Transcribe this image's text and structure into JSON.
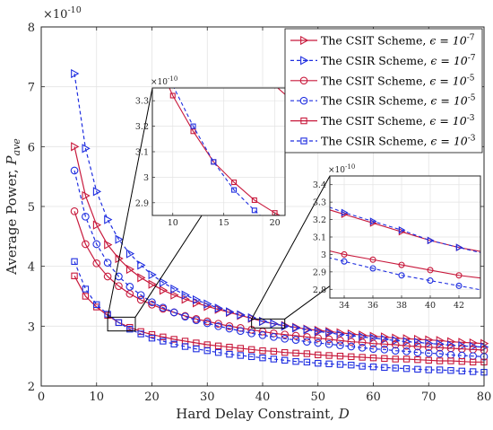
{
  "chart_data": {
    "type": "line",
    "xlabel": "Hard Delay Constraint, ",
    "xlabel_var": "D",
    "ylabel": "Average Power, ",
    "ylabel_var": "P",
    "ylabel_sub": "ave",
    "xlim": [
      0,
      80
    ],
    "ylim": [
      2e-10,
      8e-10
    ],
    "y_exponent": "×10",
    "y_exponent_power": "-10",
    "xticks": [
      "0",
      "10",
      "20",
      "30",
      "40",
      "50",
      "60",
      "70",
      "80"
    ],
    "yticks": [
      "2",
      "3",
      "4",
      "5",
      "6",
      "7",
      "8"
    ],
    "grid": true,
    "legend_position": "top-right",
    "colors": {
      "csit": "#c8193c",
      "csir": "#1f2ee0"
    },
    "series": [
      {
        "name": "The CSIT Scheme, ",
        "eps": "ϵ = 10",
        "eps_power": "-7",
        "style": "solid",
        "color": "#c8193c",
        "marker": "triangle-right",
        "x": [
          6,
          8,
          10,
          12,
          14,
          16,
          18,
          20,
          22,
          24,
          26,
          28,
          30,
          32,
          34,
          36,
          38,
          40,
          42,
          44,
          46,
          48,
          50,
          52,
          54,
          56,
          58,
          60,
          62,
          64,
          66,
          68,
          70,
          72,
          74,
          76,
          78,
          80
        ],
        "y": [
          6e-10,
          5.18e-10,
          4.69e-10,
          4.36e-10,
          4.13e-10,
          3.95e-10,
          3.81e-10,
          3.7e-10,
          3.6e-10,
          3.52e-10,
          3.45e-10,
          3.39e-10,
          3.33e-10,
          3.28e-10,
          3.23e-10,
          3.18e-10,
          3.13e-10,
          3.08e-10,
          3.04e-10,
          3.01e-10,
          2.98e-10,
          2.95e-10,
          2.93e-10,
          2.91e-10,
          2.89e-10,
          2.87e-10,
          2.85e-10,
          2.83e-10,
          2.82e-10,
          2.8e-10,
          2.79e-10,
          2.78e-10,
          2.77e-10,
          2.76e-10,
          2.74e-10,
          2.73e-10,
          2.72e-10,
          2.71e-10
        ]
      },
      {
        "name": "The CSIR Scheme, ",
        "eps": "ϵ = 10",
        "eps_power": "-7",
        "style": "dashed",
        "color": "#1f2ee0",
        "marker": "triangle-right-open",
        "x": [
          6,
          8,
          10,
          12,
          14,
          16,
          18,
          20,
          22,
          24,
          26,
          28,
          30,
          32,
          34,
          36,
          38,
          40,
          42,
          44,
          46,
          48,
          50,
          52,
          54,
          56,
          58,
          60,
          62,
          64,
          66,
          68,
          70,
          72,
          74,
          76,
          78,
          80
        ],
        "y": [
          7.22e-10,
          5.97e-10,
          5.25e-10,
          4.78e-10,
          4.45e-10,
          4.21e-10,
          4.02e-10,
          3.86e-10,
          3.73e-10,
          3.62e-10,
          3.52e-10,
          3.44e-10,
          3.37e-10,
          3.3e-10,
          3.24e-10,
          3.19e-10,
          3.14e-10,
          3.08e-10,
          3.04e-10,
          3e-10,
          2.97e-10,
          2.94e-10,
          2.91e-10,
          2.89e-10,
          2.86e-10,
          2.84e-10,
          2.82e-10,
          2.8e-10,
          2.78e-10,
          2.76e-10,
          2.74e-10,
          2.73e-10,
          2.71e-10,
          2.7e-10,
          2.68e-10,
          2.67e-10,
          2.66e-10,
          2.65e-10
        ]
      },
      {
        "name": "The CSIT Scheme, ",
        "eps": "ϵ = 10",
        "eps_power": "-5",
        "style": "solid",
        "color": "#c8193c",
        "marker": "circle-open",
        "x": [
          6,
          8,
          10,
          12,
          14,
          16,
          18,
          20,
          22,
          24,
          26,
          28,
          30,
          32,
          34,
          36,
          38,
          40,
          42,
          44,
          46,
          48,
          50,
          52,
          54,
          56,
          58,
          60,
          62,
          64,
          66,
          68,
          70,
          72,
          74,
          76,
          78,
          80
        ],
        "y": [
          4.92e-10,
          4.37e-10,
          4.05e-10,
          3.83e-10,
          3.67e-10,
          3.54e-10,
          3.44e-10,
          3.36e-10,
          3.29e-10,
          3.23e-10,
          3.17e-10,
          3.12e-10,
          3.08e-10,
          3.04e-10,
          3e-10,
          2.97e-10,
          2.94e-10,
          2.91e-10,
          2.88e-10,
          2.86e-10,
          2.84e-10,
          2.82e-10,
          2.8e-10,
          2.78e-10,
          2.76e-10,
          2.74e-10,
          2.73e-10,
          2.71e-10,
          2.7e-10,
          2.69e-10,
          2.67e-10,
          2.66e-10,
          2.65e-10,
          2.64e-10,
          2.63e-10,
          2.62e-10,
          2.61e-10,
          2.6e-10
        ]
      },
      {
        "name": "The CSIR Scheme, ",
        "eps": "ϵ = 10",
        "eps_power": "-5",
        "style": "dashed",
        "color": "#1f2ee0",
        "marker": "circle-open",
        "x": [
          6,
          8,
          10,
          12,
          14,
          16,
          18,
          20,
          22,
          24,
          26,
          28,
          30,
          32,
          34,
          36,
          38,
          40,
          42,
          44,
          46,
          48,
          50,
          52,
          54,
          56,
          58,
          60,
          62,
          64,
          66,
          68,
          70,
          72,
          74,
          76,
          78,
          80
        ],
        "y": [
          5.6e-10,
          4.83e-10,
          4.37e-10,
          4.06e-10,
          3.83e-10,
          3.66e-10,
          3.52e-10,
          3.4e-10,
          3.31e-10,
          3.23e-10,
          3.16e-10,
          3.1e-10,
          3.05e-10,
          3e-10,
          2.96e-10,
          2.92e-10,
          2.88e-10,
          2.85e-10,
          2.82e-10,
          2.79e-10,
          2.77e-10,
          2.74e-10,
          2.72e-10,
          2.7e-10,
          2.68e-10,
          2.66e-10,
          2.64e-10,
          2.62e-10,
          2.61e-10,
          2.59e-10,
          2.58e-10,
          2.56e-10,
          2.55e-10,
          2.54e-10,
          2.52e-10,
          2.51e-10,
          2.5e-10,
          2.49e-10
        ]
      },
      {
        "name": "The CSIT Scheme, ",
        "eps": "ϵ = 10",
        "eps_power": "-3",
        "style": "solid",
        "color": "#c8193c",
        "marker": "square-open",
        "x": [
          6,
          8,
          10,
          12,
          14,
          16,
          18,
          20,
          22,
          24,
          26,
          28,
          30,
          32,
          34,
          36,
          38,
          40,
          42,
          44,
          46,
          48,
          50,
          52,
          54,
          56,
          58,
          60,
          62,
          64,
          66,
          68,
          70,
          72,
          74,
          76,
          78,
          80
        ],
        "y": [
          3.84e-10,
          3.5e-10,
          3.32e-10,
          3.18e-10,
          3.06e-10,
          2.98e-10,
          2.91e-10,
          2.86e-10,
          2.82e-10,
          2.78e-10,
          2.75e-10,
          2.72e-10,
          2.69e-10,
          2.67e-10,
          2.65e-10,
          2.63e-10,
          2.61e-10,
          2.59e-10,
          2.58e-10,
          2.56e-10,
          2.55e-10,
          2.54e-10,
          2.52e-10,
          2.51e-10,
          2.5e-10,
          2.49e-10,
          2.48e-10,
          2.47e-10,
          2.46e-10,
          2.45e-10,
          2.45e-10,
          2.44e-10,
          2.43e-10,
          2.42e-10,
          2.42e-10,
          2.41e-10,
          2.4e-10,
          2.4e-10
        ]
      },
      {
        "name": "The CSIR Scheme, ",
        "eps": "ϵ = 10",
        "eps_power": "-3",
        "style": "dashed",
        "color": "#1f2ee0",
        "marker": "square-open",
        "x": [
          6,
          8,
          10,
          12,
          14,
          16,
          18,
          20,
          22,
          24,
          26,
          28,
          30,
          32,
          34,
          36,
          38,
          40,
          42,
          44,
          46,
          48,
          50,
          52,
          54,
          56,
          58,
          60,
          62,
          64,
          66,
          68,
          70,
          72,
          74,
          76,
          78,
          80
        ],
        "y": [
          4.08e-10,
          3.62e-10,
          3.36e-10,
          3.2e-10,
          3.06e-10,
          2.95e-10,
          2.87e-10,
          2.8e-10,
          2.75e-10,
          2.7e-10,
          2.66e-10,
          2.62e-10,
          2.59e-10,
          2.56e-10,
          2.53e-10,
          2.51e-10,
          2.49e-10,
          2.47e-10,
          2.45e-10,
          2.43e-10,
          2.41e-10,
          2.4e-10,
          2.38e-10,
          2.37e-10,
          2.36e-10,
          2.35e-10,
          2.33e-10,
          2.32e-10,
          2.31e-10,
          2.3e-10,
          2.29e-10,
          2.28e-10,
          2.27e-10,
          2.27e-10,
          2.26e-10,
          2.25e-10,
          2.24e-10,
          2.23e-10
        ]
      }
    ],
    "insets": [
      {
        "xlim": [
          8,
          21
        ],
        "ylim": [
          2.85e-10,
          3.35e-10
        ],
        "xticks": [
          "10",
          "15",
          "20"
        ],
        "yticks": [
          "2.9",
          "3",
          "3.1",
          "3.2",
          "3.3"
        ],
        "y_exponent": "×10",
        "y_exponent_power": "-10",
        "source_xrange": [
          12,
          17
        ],
        "source_yrange": [
          2.92e-10,
          3.15e-10
        ]
      },
      {
        "xlim": [
          33,
          43.5
        ],
        "ylim": [
          2.75e-10,
          3.45e-10
        ],
        "xticks": [
          "34",
          "36",
          "38",
          "40",
          "42"
        ],
        "yticks": [
          "2.8",
          "2.9",
          "3",
          "3.1",
          "3.2",
          "3.3",
          "3.4"
        ],
        "y_exponent": "×10",
        "y_exponent_power": "-10",
        "source_xrange": [
          38,
          44
        ],
        "source_yrange": [
          2.97e-10,
          3.12e-10
        ]
      }
    ]
  }
}
